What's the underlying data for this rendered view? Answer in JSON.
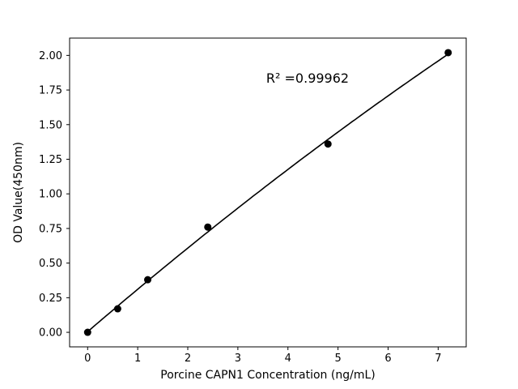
{
  "chart_data": {
    "type": "scatter",
    "title": "",
    "xlabel": "Porcine CAPN1 Concentration (ng/mL)",
    "ylabel": "OD Value(450nm)",
    "annotation": "R² =0.99962",
    "annotation_pos": [
      0.6,
      0.855
    ],
    "x": [
      0,
      0.6,
      1.2,
      2.4,
      4.8,
      7.2
    ],
    "y": [
      0.0,
      0.17,
      0.38,
      0.76,
      1.36,
      2.02
    ],
    "fit_type": "quadratic",
    "fit_coeffs": [
      -0.004543,
      0.31114,
      0.00451
    ],
    "xlim": [
      -0.36,
      7.56
    ],
    "ylim": [
      -0.105,
      2.125
    ],
    "x_ticks": [
      0,
      1,
      2,
      3,
      4,
      5,
      6,
      7
    ],
    "y_ticks": [
      0.0,
      0.25,
      0.5,
      0.75,
      1.0,
      1.25,
      1.5,
      1.75,
      2.0
    ],
    "grid": false,
    "legend": "none",
    "marker_color": "#000000",
    "line_color": "#000000",
    "background_color": "#ffffff"
  }
}
